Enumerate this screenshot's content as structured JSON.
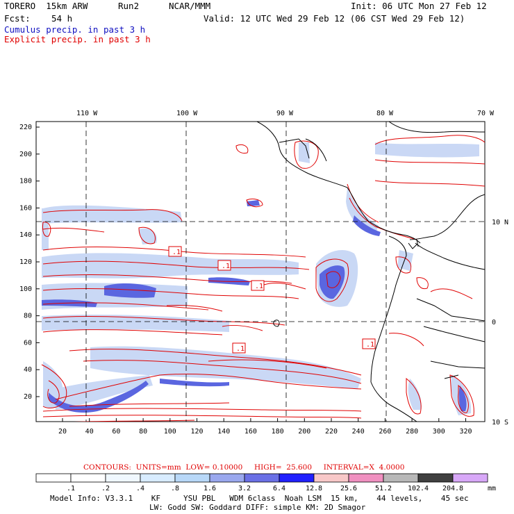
{
  "header": {
    "model": "TORERO  15km ARW",
    "run": "Run2",
    "org": "NCAR/MMM",
    "init": "Init: 06 UTC Mon 27 Feb 12",
    "fcst_label": "Fcst:",
    "fcst_value": "54 h",
    "valid": "Valid: 12 UTC Wed 29 Feb 12 (06 CST Wed 29 Feb 12)",
    "line_blue": "Cumulus precip. in past 3 h",
    "line_red": "Explicit precip. in past 3 h"
  },
  "map": {
    "lon_labels": [
      "110 W",
      "100 W",
      "90 W",
      "80 W",
      "70 W"
    ],
    "lat_labels": [
      "10 N",
      "0",
      "10 S"
    ],
    "y_ticks": [
      "220",
      "200",
      "180",
      "160",
      "140",
      "120",
      "100",
      "80",
      "60",
      "40",
      "20"
    ],
    "x_ticks": [
      "20",
      "40",
      "60",
      "80",
      "100",
      "120",
      "140",
      "160",
      "180",
      "200",
      "220",
      "240",
      "260",
      "280",
      "300",
      "320"
    ],
    "contour_labels": [
      ".1",
      ".1",
      ".1",
      ".1",
      ".1"
    ]
  },
  "legend": {
    "title": "CONTOURS:  UNITS=mm  LOW= 0.10000     HIGH=  25.600     INTERVAL=X  4.0000",
    "values": [
      ".1",
      ".2",
      ".4",
      ".8",
      "1.6",
      "3.2",
      "6.4",
      "12.8",
      "25.6",
      "51.2",
      "102.4",
      "204.8"
    ],
    "unit": "mm",
    "colors": [
      "#ffffff",
      "#ffffff",
      "#f0f8ff",
      "#d8ecff",
      "#b8d8f8",
      "#9aa8ee",
      "#6a70e6",
      "#2020ff",
      "#f8c8c8",
      "#f090c0",
      "#b8b8b8",
      "#404040",
      "#d8a8f8"
    ]
  },
  "footer": {
    "line1": "Model Info: V3.3.1    KF     YSU PBL   WDM 6class  Noah LSM  15 km,    44 levels,    45 sec",
    "line2": "LW: Godd SW: Goddard DIFF: simple KM: 2D Smagor"
  }
}
